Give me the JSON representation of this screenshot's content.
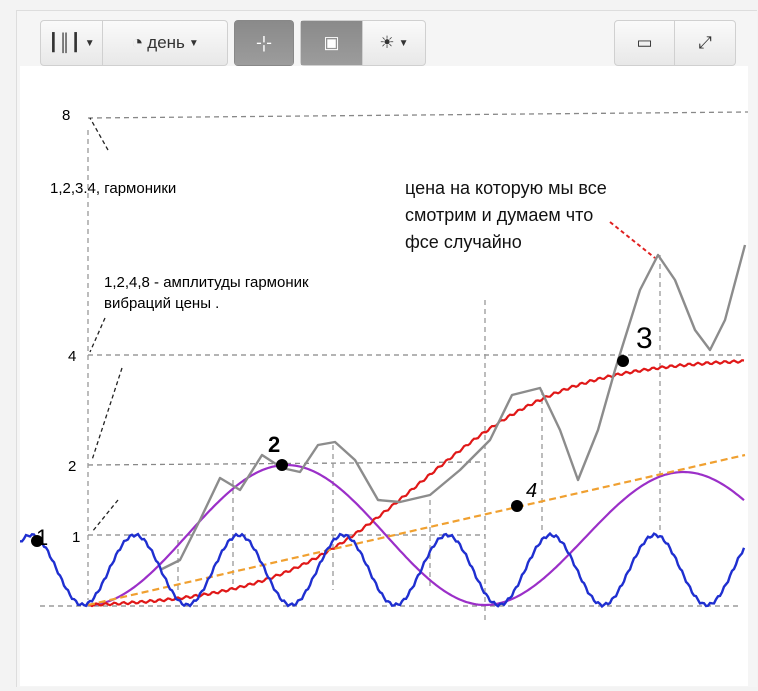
{
  "toolbar": {
    "chart_type_icon": "candlestick-icon",
    "period_icon": "clock-icon",
    "period_label": "день",
    "crosshair_icon": "crosshair-icon",
    "indicator_icon": "indicator-panel-icon",
    "alert_icon": "alarm-light-icon",
    "screen_icon": "monitor-icon",
    "fullscreen_icon": "fullscreen-icon"
  },
  "chart_data": {
    "type": "line",
    "y_ticks": [
      "1",
      "2",
      "4",
      "8"
    ],
    "annotations": {
      "harmonics": "1,2,3.4, гармоники",
      "amplitudes_line1": "1,2,4,8 - амплитуды гармоник",
      "amplitudes_line2": "вибраций цены .",
      "price_line1": "цена на которую мы все",
      "price_line2": "смотрим  и думаем  что",
      "price_line3": "фсе случайно"
    },
    "markers": [
      "1",
      "2",
      "3",
      "4"
    ],
    "colors": {
      "harmonic1": "#1f2fd0",
      "harmonic2": "#9b2fc8",
      "harmonic3": "#e01818",
      "harmonic4": "#f0a030",
      "price": "#8c8c8c",
      "arrow": "#e02020"
    }
  }
}
